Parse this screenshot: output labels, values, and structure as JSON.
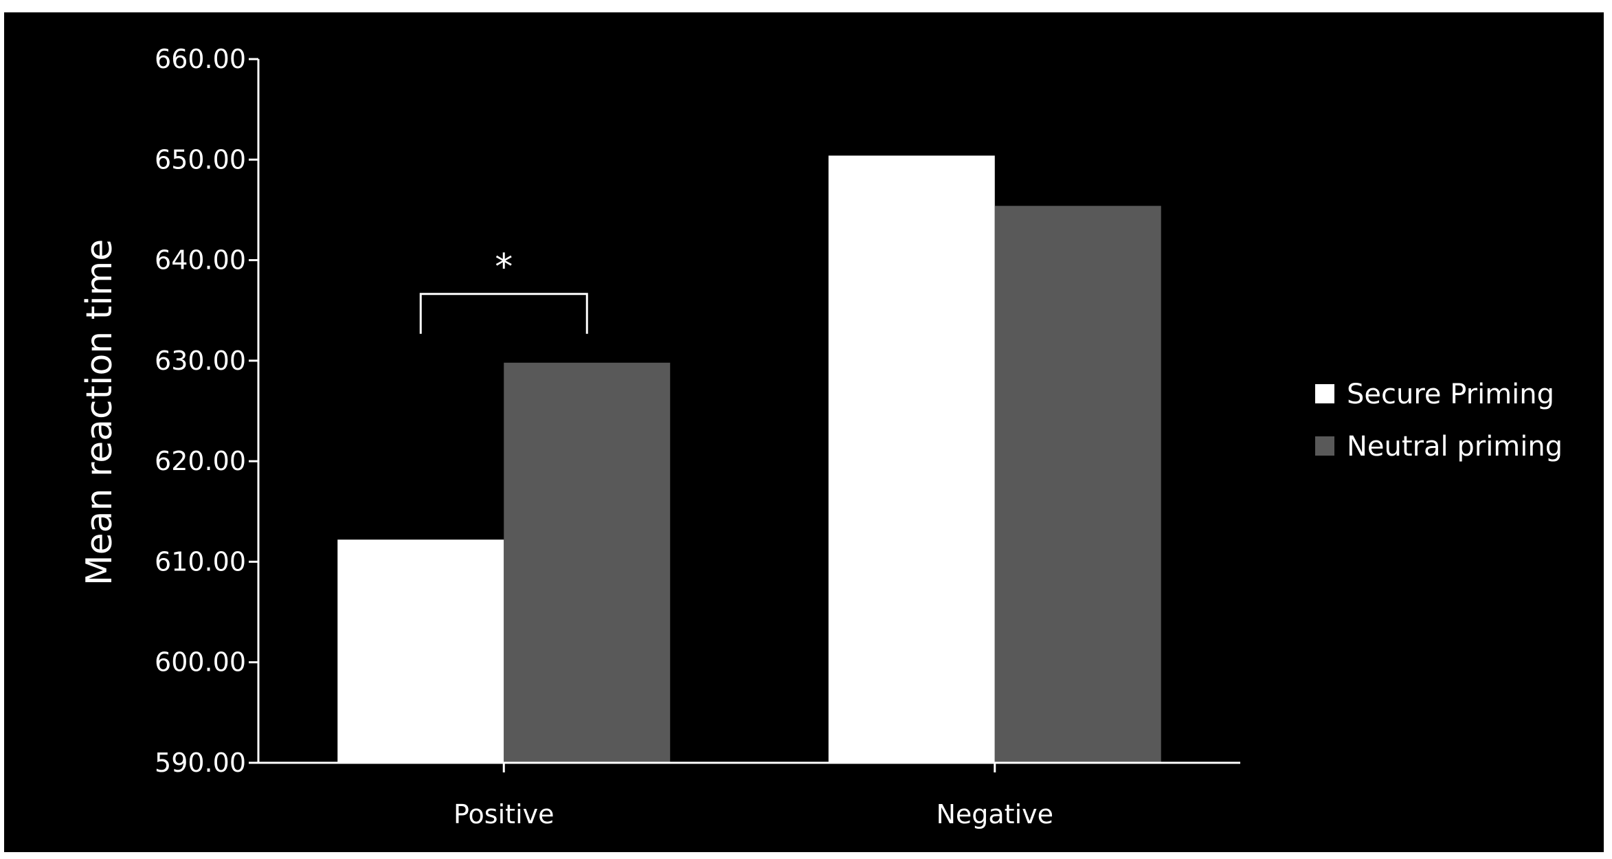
{
  "chart_data": {
    "type": "bar",
    "title": "",
    "xlabel": "",
    "ylabel": "Mean reaction time",
    "categories": [
      "Positive",
      "Negative"
    ],
    "series": [
      {
        "name": "Secure Priming",
        "color": "#ffffff",
        "values": [
          612.2,
          650.4
        ]
      },
      {
        "name": "Neutral priming",
        "color": "#595959",
        "values": [
          629.8,
          645.4
        ]
      }
    ],
    "ylim": [
      590,
      660
    ],
    "yticks": [
      "590.00",
      "600.00",
      "610.00",
      "620.00",
      "630.00",
      "640.00",
      "650.00",
      "660.00"
    ],
    "grid": false,
    "legend": "right",
    "background": "#000000",
    "annotations": [
      {
        "text": "*",
        "type": "significance-bracket",
        "category": "Positive"
      }
    ]
  }
}
